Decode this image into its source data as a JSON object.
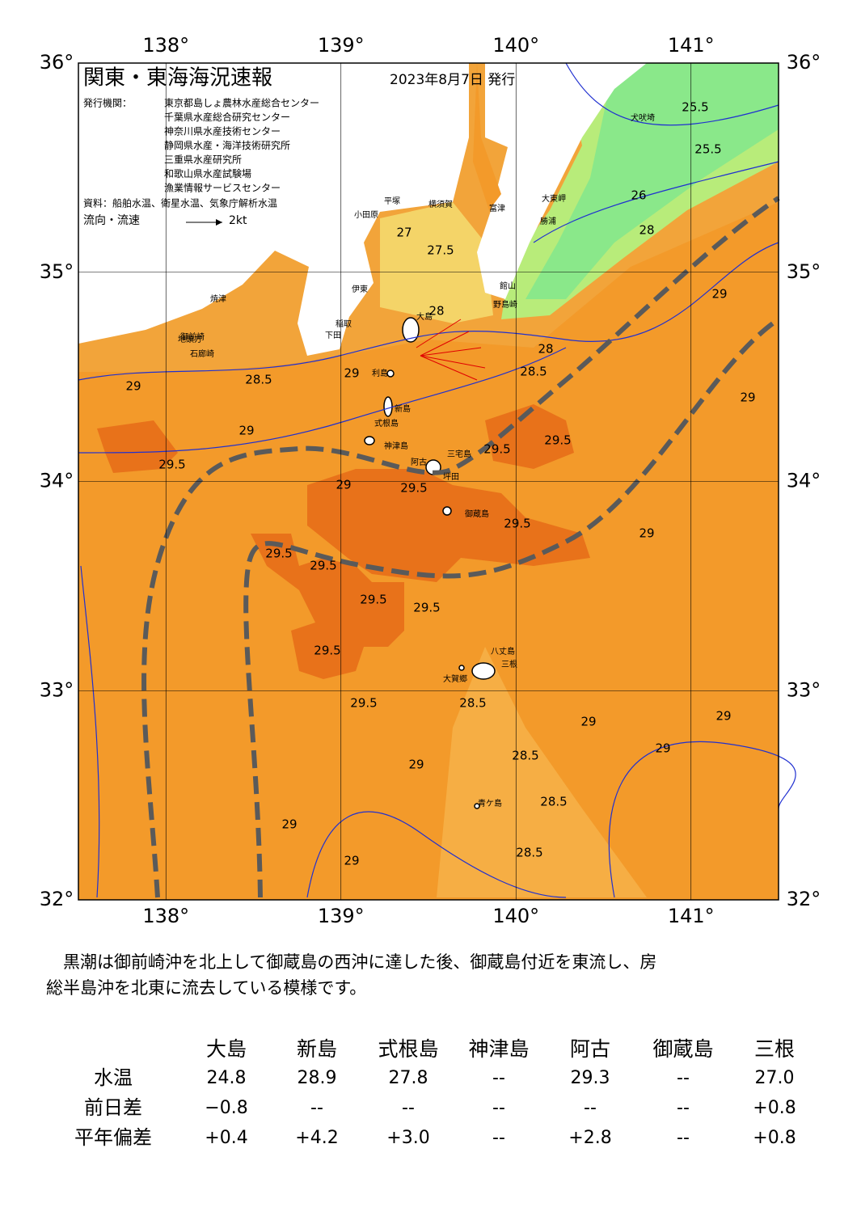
{
  "header": {
    "title": "関東・東海海況速報",
    "date": "2023年8月7日 発行",
    "issuer_label": "発行機関：",
    "issuers": [
      "東京都島しょ農林水産総合センター",
      "千葉県水産総合研究センター",
      "神奈川県水産技術センター",
      "静岡県水産・海洋技術研究所",
      "三重県水産研究所",
      "和歌山県水産試験場",
      "漁業情報サービスセンター"
    ],
    "sources": "資料：船舶水温、衛星水温、気象庁解析水温",
    "legend_label": "流向・流速",
    "legend_speed": "2kt"
  },
  "map": {
    "lon_range": [
      137.5,
      141.5
    ],
    "lat_range": [
      32,
      36
    ],
    "lon_ticks": [
      {
        "value": 138,
        "label": "138°"
      },
      {
        "value": 139,
        "label": "139°"
      },
      {
        "value": 140,
        "label": "140°"
      },
      {
        "value": 141,
        "label": "141°"
      }
    ],
    "lat_ticks": [
      {
        "value": 32,
        "label": "32°"
      },
      {
        "value": 33,
        "label": "33°"
      },
      {
        "value": 34,
        "label": "34°"
      },
      {
        "value": 35,
        "label": "35°"
      },
      {
        "value": 36,
        "label": "36°"
      }
    ],
    "places": [
      "大島",
      "利島",
      "新島",
      "式根島",
      "神津島",
      "三宅島",
      "阿古",
      "坪田",
      "御蔵島",
      "八丈島",
      "大賀郷",
      "三根",
      "青ケ島",
      "石廊崎",
      "御前崎",
      "館山",
      "野島崎",
      "勝浦",
      "大東岬",
      "犬吠埼",
      "富津",
      "横須賀",
      "平塚",
      "小田原",
      "伊東",
      "下田",
      "稲取",
      "焼津",
      "地頭方"
    ],
    "isotherm_labels": [
      29,
      29.5,
      28.5,
      29,
      29.5,
      29.5,
      29.5,
      29.5,
      29.5,
      29.5,
      29.5,
      29.5,
      29.5,
      28.5,
      28.5,
      28.5,
      28.5,
      28,
      28,
      28,
      27,
      27.5,
      26,
      25.5,
      25.5,
      29,
      29,
      29,
      29,
      29,
      29,
      29,
      29,
      29,
      29,
      29,
      28.5,
      29.5
    ]
  },
  "summary": [
    "　黒潮は御前崎沖を北上して御蔵島の西沖に達した後、御蔵島付近を東流し、房",
    "総半島沖を北東に流去している模様です。"
  ],
  "table": {
    "columns": [
      "大島",
      "新島",
      "式根島",
      "神津島",
      "阿古",
      "御蔵島",
      "三根"
    ],
    "rows": [
      {
        "label": "水温",
        "cells": [
          "24.8",
          "28.9",
          "27.8",
          "--",
          "29.3",
          "--",
          "27.0"
        ]
      },
      {
        "label": "前日差",
        "cells": [
          "−0.8",
          "--",
          "--",
          "--",
          "--",
          "--",
          "+0.8"
        ]
      },
      {
        "label": "平年偏差",
        "cells": [
          "+0.4",
          "+4.2",
          "+3.0",
          "--",
          "+2.8",
          "--",
          "+0.8"
        ]
      }
    ]
  }
}
